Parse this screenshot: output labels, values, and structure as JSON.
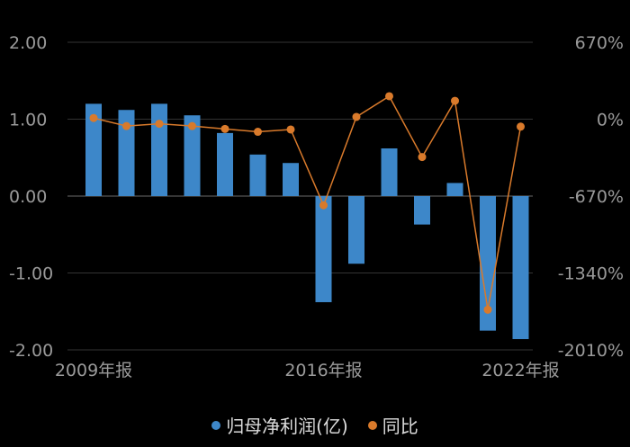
{
  "chart_data": {
    "type": "bar+line",
    "years": [
      "2009",
      "2010",
      "2011",
      "2012",
      "2013",
      "2014",
      "2015",
      "2016",
      "2017",
      "2018",
      "2019",
      "2020",
      "2021",
      "2022"
    ],
    "x_tick_labels": [
      "2009年报",
      "2016年报",
      "2022年报"
    ],
    "series": [
      {
        "name": "归母净利润(亿)",
        "type": "bar",
        "axis": "left",
        "color": "#3d87c9",
        "values": [
          1.2,
          1.12,
          1.2,
          1.05,
          0.82,
          0.54,
          0.43,
          -1.38,
          -0.88,
          0.62,
          -0.37,
          0.17,
          -1.75,
          -1.86
        ]
      },
      {
        "name": "同比",
        "type": "line",
        "axis": "right",
        "color": "#d97a2b",
        "values": [
          10,
          -60,
          -40,
          -60,
          -85,
          -110,
          -90,
          -750,
          20,
          200,
          -330,
          160,
          -1660,
          -65
        ]
      }
    ],
    "left_axis": {
      "ticks": [
        2,
        1,
        0,
        -1,
        -2
      ],
      "tick_labels": [
        "2.00",
        "1.00",
        "0.00",
        "-1.00",
        "-2.00"
      ]
    },
    "right_axis": {
      "ticks": [
        670,
        0,
        -670,
        -1340,
        -2010
      ],
      "tick_labels": [
        "670%",
        "0%",
        "-670%",
        "-1340%",
        "-2010%"
      ]
    },
    "grid": true
  }
}
